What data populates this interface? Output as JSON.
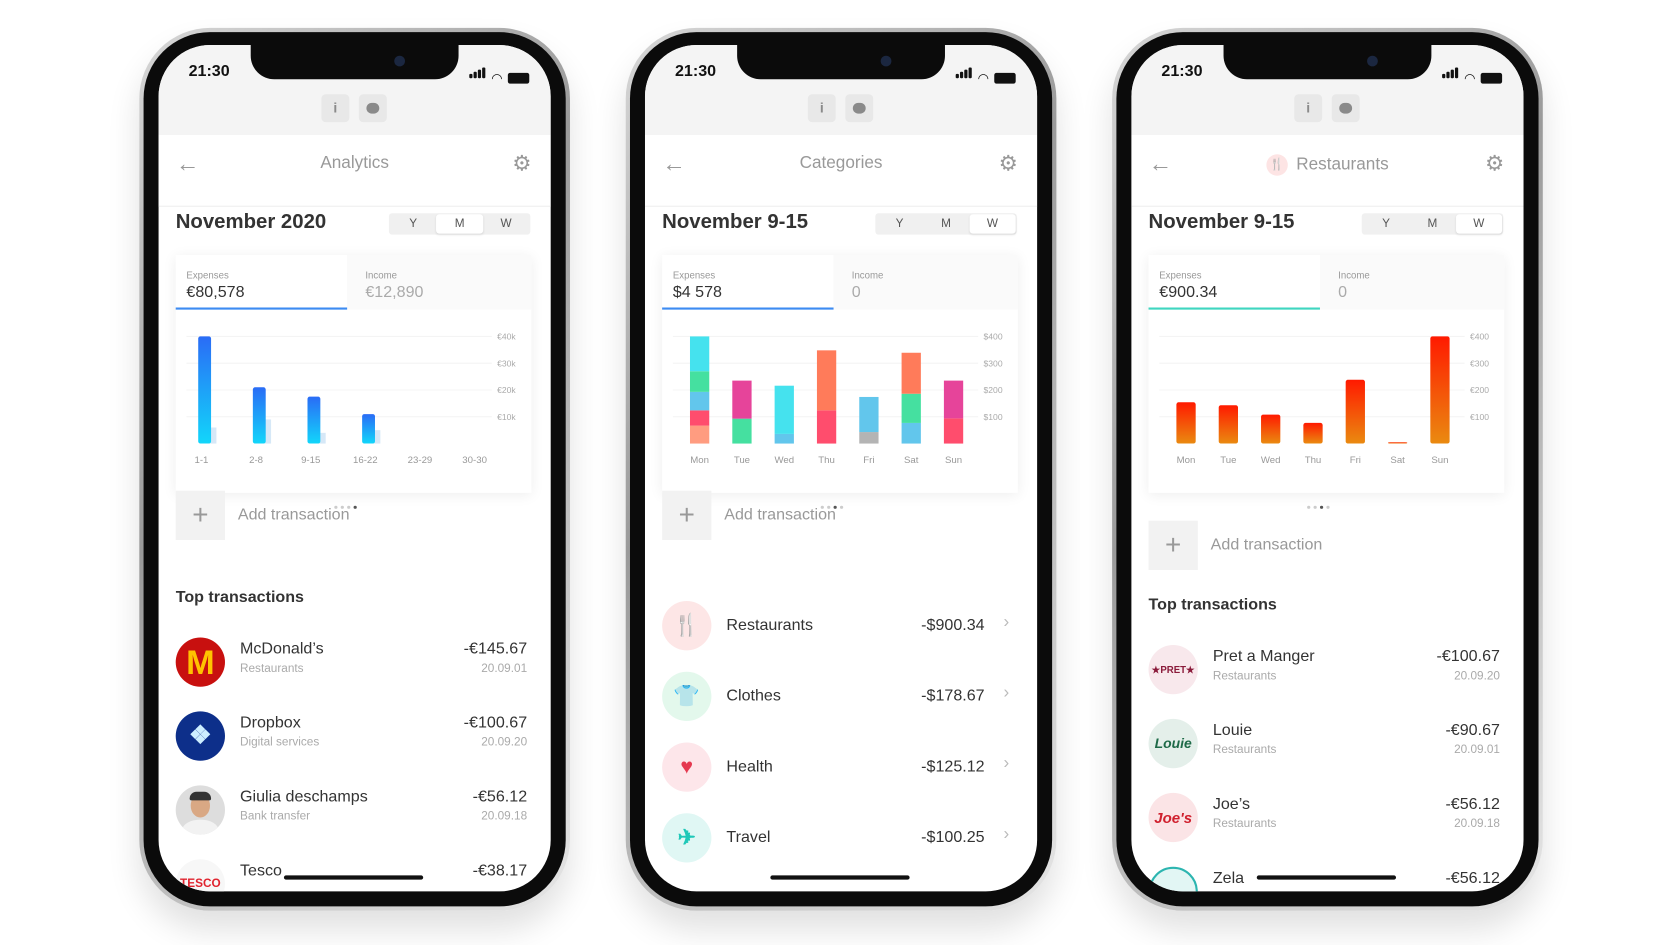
{
  "phones": [
    {
      "time": "21:30",
      "title": "Analytics",
      "period": "November 2020",
      "segments": [
        "Y",
        "M",
        "W"
      ],
      "active_segment": "M",
      "expenses_label": "Expenses",
      "expenses_value": "€80,578",
      "income_label": "Income",
      "income_value": "€12,890",
      "accent": "#3d8bf2",
      "add_label": "Add transaction",
      "section_title": "Top transactions",
      "transactions": [
        {
          "name": "McDonald’s",
          "category": "Restaurants",
          "amount": "-€145.67",
          "date": "20.09.01",
          "logo": "mcdonalds-logo"
        },
        {
          "name": "Dropbox",
          "category": "Digital services",
          "amount": "-€100.67",
          "date": "20.09.20",
          "logo": "dropbox-logo"
        },
        {
          "name": "Giulia deschamps",
          "category": "Bank transfer",
          "amount": "-€56.12",
          "date": "20.09.18",
          "logo": "person-avatar"
        },
        {
          "name": "Tesco",
          "category": "",
          "amount": "-€38.17",
          "date": "",
          "logo": "tesco-logo",
          "logo_text": "TESCO"
        }
      ]
    },
    {
      "time": "21:30",
      "title": "Categories",
      "period": "November 9-15",
      "segments": [
        "Y",
        "M",
        "W"
      ],
      "active_segment": "W",
      "expenses_label": "Expenses",
      "expenses_value": "$4 578",
      "income_label": "Income",
      "income_value": "0",
      "accent": "#3d8bf2",
      "add_label": "Add transaction",
      "categories": [
        {
          "name": "Restaurants",
          "amount": "-$900.34",
          "icon": "fork-knife-icon",
          "glyph": "🍴",
          "color": "#e53935",
          "bg": "#fde6e6"
        },
        {
          "name": "Clothes",
          "amount": "-$178.67",
          "icon": "tshirt-icon",
          "glyph": "👕",
          "color": "#2ecc71",
          "bg": "#e3f8ec"
        },
        {
          "name": "Health",
          "amount": "-$125.12",
          "icon": "heart-icon",
          "glyph": "♥",
          "color": "#e53950",
          "bg": "#fde6ea"
        },
        {
          "name": "Travel",
          "amount": "-$100.25",
          "icon": "airplane-icon",
          "glyph": "✈",
          "color": "#1fc8b8",
          "bg": "#e0f7f4"
        }
      ]
    },
    {
      "time": "21:30",
      "title": "Restaurants",
      "title_icon": "fork-knife-icon",
      "period": "November 9-15",
      "segments": [
        "Y",
        "M",
        "W"
      ],
      "active_segment": "W",
      "expenses_label": "Expenses",
      "expenses_value": "€900.34",
      "income_label": "Income",
      "income_value": "0",
      "accent": "#3fd6c0",
      "add_label": "Add transaction",
      "section_title": "Top transactions",
      "transactions": [
        {
          "name": "Pret a Manger",
          "category": "Restaurants",
          "amount": "-€100.67",
          "date": "20.09.20",
          "logo": "pret-logo",
          "logo_text": "★PRET★"
        },
        {
          "name": "Louie",
          "category": "Restaurants",
          "amount": "-€90.67",
          "date": "20.09.01",
          "logo": "louie-logo",
          "logo_text": "Louie"
        },
        {
          "name": "Joe’s",
          "category": "Restaurants",
          "amount": "-€56.12",
          "date": "20.09.18",
          "logo": "joes-logo",
          "logo_text": "Joe's"
        },
        {
          "name": "Zela",
          "category": "",
          "amount": "-€56.12",
          "date": "",
          "logo": "zela-logo"
        }
      ]
    }
  ],
  "chart_data": [
    {
      "type": "bar",
      "categories": [
        "1-1",
        "2-8",
        "9-15",
        "16-22",
        "23-29",
        "30-30"
      ],
      "series": [
        {
          "name": "Expenses",
          "values": [
            40000,
            21000,
            17500,
            11000,
            0,
            0
          ],
          "color": "#2a6cf6"
        },
        {
          "name": "Income",
          "values": [
            6000,
            9000,
            4000,
            5000,
            0,
            0
          ],
          "color": "#d6e8f7"
        }
      ],
      "yticks": [
        "€10k",
        "€20k",
        "€30k",
        "€40k"
      ],
      "ylim": [
        0,
        40000
      ]
    },
    {
      "type": "bar",
      "stacked": true,
      "categories": [
        "Mon",
        "Tue",
        "Wed",
        "Thu",
        "Fri",
        "Sat",
        "Sun"
      ],
      "stacks": [
        [
          {
            "v": 67,
            "c": "#ff9c80"
          },
          {
            "v": 57,
            "c": "#ff4d6d"
          },
          {
            "v": 69,
            "c": "#62c6ec"
          },
          {
            "v": 77,
            "c": "#45e0a0"
          },
          {
            "v": 130,
            "c": "#45e2ee"
          }
        ],
        [
          {
            "v": 93,
            "c": "#45e0a0"
          },
          {
            "v": 142,
            "c": "#e6449a"
          }
        ],
        [
          {
            "v": 36,
            "c": "#62c6ec"
          },
          {
            "v": 180,
            "c": "#45e2ee"
          }
        ],
        [
          {
            "v": 124,
            "c": "#ff4d6d"
          },
          {
            "v": 224,
            "c": "#ff7b5a"
          }
        ],
        [
          {
            "v": 43,
            "c": "#b4b4b4"
          },
          {
            "v": 131,
            "c": "#62c6ec"
          }
        ],
        [
          {
            "v": 77,
            "c": "#62c6ec"
          },
          {
            "v": 109,
            "c": "#45e0a0"
          },
          {
            "v": 153,
            "c": "#ff7b5a"
          }
        ],
        [
          {
            "v": 94,
            "c": "#ff4d6d"
          },
          {
            "v": 141,
            "c": "#e6449a"
          }
        ]
      ],
      "yticks": [
        "$100",
        "$200",
        "$300",
        "$400"
      ],
      "ylim": [
        0,
        400
      ]
    },
    {
      "type": "bar",
      "categories": [
        "Mon",
        "Tue",
        "Wed",
        "Thu",
        "Fri",
        "Sat",
        "Sun"
      ],
      "series": [
        {
          "values": [
            154,
            143,
            108,
            77,
            238,
            5,
            400
          ],
          "color": "#ff1a00"
        }
      ],
      "yticks": [
        "€100",
        "€200",
        "€300",
        "€400"
      ],
      "ylim": [
        0,
        400
      ]
    }
  ]
}
